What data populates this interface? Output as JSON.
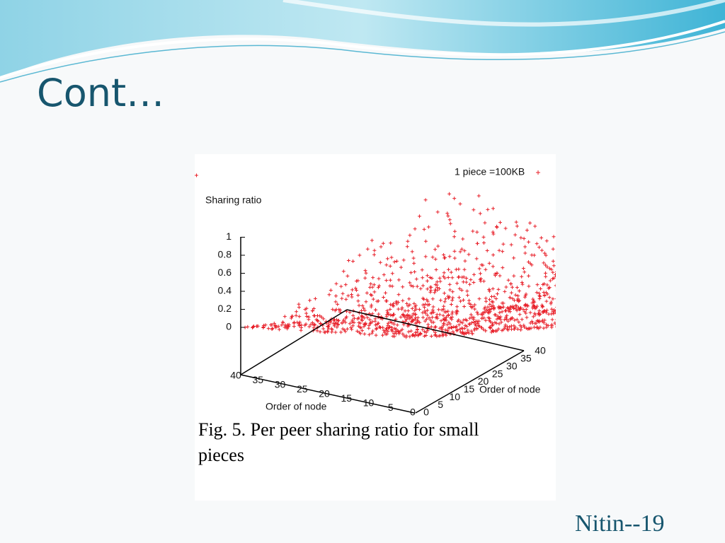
{
  "title": "Cont…",
  "figure": {
    "legend": "1 piece =100KB",
    "z_axis_label": "Sharing ratio",
    "z_ticks": [
      "0",
      "0.2",
      "0.4",
      "0.6",
      "0.8",
      "1"
    ],
    "x_axis_label": "Order of node",
    "x_ticks": [
      "40",
      "35",
      "30",
      "25",
      "20",
      "15",
      "10",
      "5",
      "0"
    ],
    "y_axis_label": "Order of node",
    "y_ticks": [
      "0",
      "5",
      "10",
      "15",
      "20",
      "25",
      "30",
      "35",
      "40"
    ],
    "caption_line1": "Fig. 5.   Per peer sharing ratio for small",
    "caption_line2": "pieces"
  },
  "footer": "Nitin--19"
}
